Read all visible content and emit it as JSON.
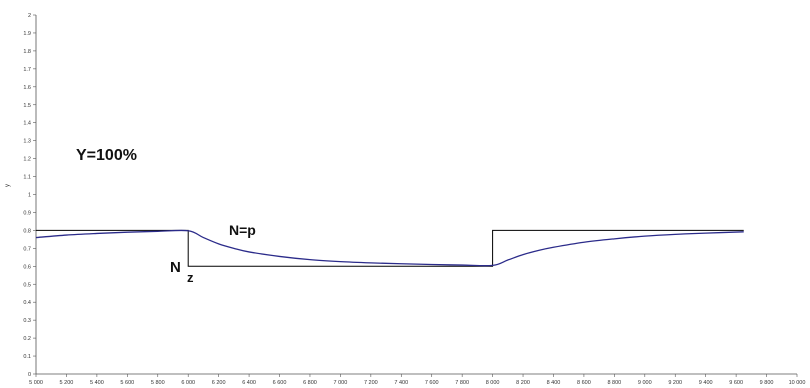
{
  "chart_data": {
    "type": "line",
    "title": "",
    "xlabel": "",
    "ylabel": "y",
    "xlim": [
      5000,
      10000
    ],
    "ylim": [
      0,
      2
    ],
    "x_ticks": [
      "5 000",
      "5 200",
      "5 400",
      "5 600",
      "5 800",
      "6 000",
      "6 200",
      "6 400",
      "6 600",
      "6 800",
      "7 000",
      "7 200",
      "7 400",
      "7 600",
      "7 800",
      "8 000",
      "8 200",
      "8 400",
      "8 600",
      "8 800",
      "9 000",
      "9 200",
      "9 400",
      "9 600",
      "9 800",
      "10 000"
    ],
    "y_ticks": [
      "0",
      "0.1",
      "0.2",
      "0.3",
      "0.4",
      "0.5",
      "0.6",
      "0.7",
      "0.8",
      "0.9",
      "1",
      "1.1",
      "1.2",
      "1.3",
      "1.4",
      "1.5",
      "1.6",
      "1.7",
      "1.8",
      "1.9",
      "2"
    ],
    "grid": false,
    "annotations": {
      "header": "Y=100%",
      "curve_label": "N=p",
      "step_label_main": "N",
      "step_label_sub": "z"
    },
    "series": [
      {
        "name": "",
        "style": "step",
        "color": "#000000",
        "x": [
          5000,
          6000,
          6000,
          8000,
          8000,
          9650
        ],
        "y": [
          0.8,
          0.8,
          0.6,
          0.6,
          0.8,
          0.8
        ]
      },
      {
        "name": "",
        "style": "smooth",
        "color": "#2b2b8a",
        "x": [
          5000,
          5200,
          5400,
          5600,
          5800,
          6000,
          6100,
          6200,
          6300,
          6400,
          6600,
          6800,
          7000,
          7200,
          7400,
          7600,
          7800,
          8000,
          8100,
          8200,
          8300,
          8400,
          8600,
          8800,
          9000,
          9200,
          9400,
          9650
        ],
        "y": [
          0.76,
          0.774,
          0.783,
          0.79,
          0.795,
          0.798,
          0.76,
          0.725,
          0.7,
          0.68,
          0.655,
          0.637,
          0.626,
          0.619,
          0.614,
          0.61,
          0.607,
          0.605,
          0.635,
          0.665,
          0.688,
          0.706,
          0.734,
          0.753,
          0.768,
          0.778,
          0.785,
          0.792
        ]
      }
    ]
  }
}
